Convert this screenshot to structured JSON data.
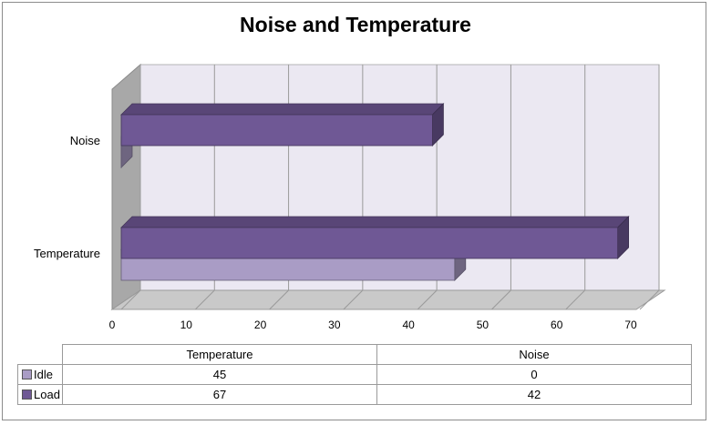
{
  "chart_data": {
    "type": "bar",
    "orientation": "horizontal",
    "style": "3d-clustered",
    "title": "Noise and Temperature",
    "categories": [
      "Temperature",
      "Noise"
    ],
    "series": [
      {
        "name": "Idle",
        "values": [
          45,
          0
        ],
        "color": "#a99cc5"
      },
      {
        "name": "Load",
        "values": [
          67,
          42
        ],
        "color": "#6f5895"
      }
    ],
    "xlim": [
      0,
      70
    ],
    "xticks": [
      "0",
      "10",
      "20",
      "30",
      "40",
      "50",
      "60",
      "70"
    ],
    "grid": true,
    "legend": "data-table-below"
  },
  "data_table": {
    "columns": [
      "Temperature",
      "Noise"
    ],
    "rows": [
      {
        "label": "Idle",
        "values": [
          "45",
          "0"
        ]
      },
      {
        "label": "Load",
        "values": [
          "67",
          "42"
        ]
      }
    ]
  },
  "colors": {
    "wall": "#ebe8f2",
    "floor": "#c9c9c9",
    "side_wall": "#a8a8a8",
    "grid": "#9a9a9a"
  }
}
